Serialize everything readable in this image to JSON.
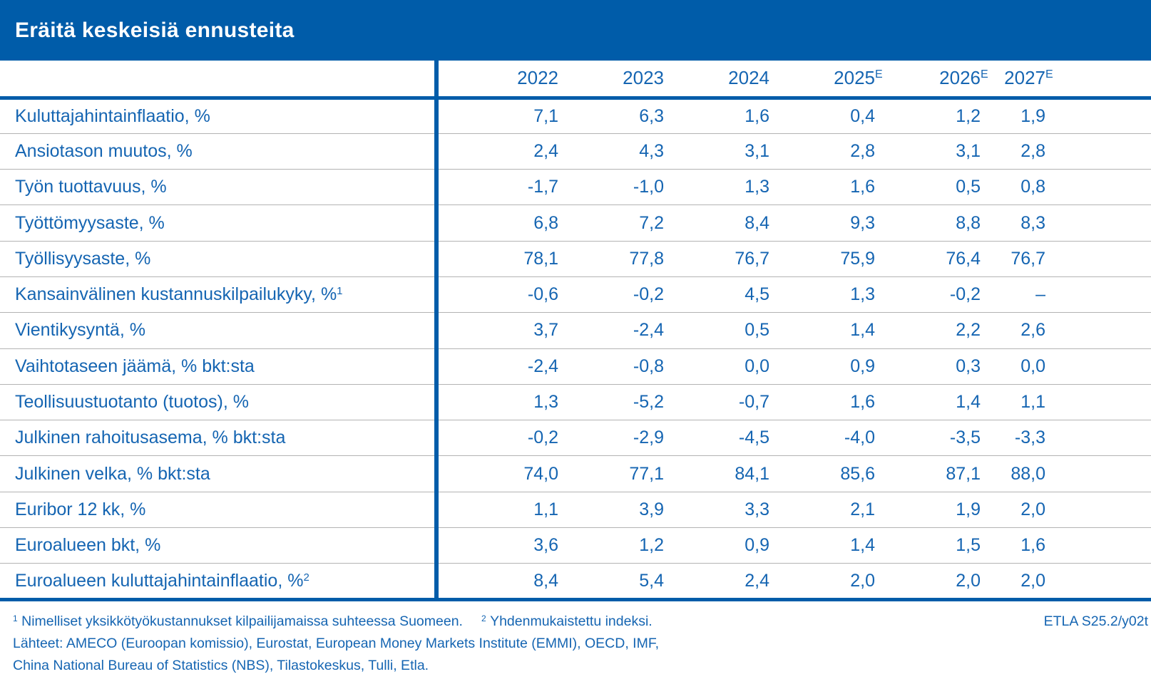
{
  "title": "Eräitä keskeisiä ennusteita",
  "colors": {
    "brand_blue": "#005CA9",
    "text_blue": "#1565B2",
    "separator_gray": "#B3B3B3",
    "title_text": "#FFFFFF"
  },
  "table": {
    "columns": [
      {
        "label": "2022",
        "sup": ""
      },
      {
        "label": "2023",
        "sup": ""
      },
      {
        "label": "2024",
        "sup": ""
      },
      {
        "label": "2025",
        "sup": "E"
      },
      {
        "label": "2026",
        "sup": "E"
      },
      {
        "label": "2027",
        "sup": "E"
      }
    ],
    "rows": [
      {
        "label": "Kuluttajahintainflaatio, %",
        "sup": "",
        "values": [
          "7,1",
          "6,3",
          "1,6",
          "0,4",
          "1,2",
          "1,9"
        ]
      },
      {
        "label": "Ansiotason muutos, %",
        "sup": "",
        "values": [
          "2,4",
          "4,3",
          "3,1",
          "2,8",
          "3,1",
          "2,8"
        ]
      },
      {
        "label": "Työn tuottavuus, %",
        "sup": "",
        "values": [
          "-1,7",
          "-1,0",
          "1,3",
          "1,6",
          "0,5",
          "0,8"
        ]
      },
      {
        "label": "Työttömyysaste, %",
        "sup": "",
        "values": [
          "6,8",
          "7,2",
          "8,4",
          "9,3",
          "8,8",
          "8,3"
        ]
      },
      {
        "label": "Työllisyysaste, %",
        "sup": "",
        "values": [
          "78,1",
          "77,8",
          "76,7",
          "75,9",
          "76,4",
          "76,7"
        ]
      },
      {
        "label": "Kansainvälinen kustannuskilpailukyky, %",
        "sup": "1",
        "values": [
          "-0,6",
          "-0,2",
          "4,5",
          "1,3",
          "-0,2",
          "–"
        ]
      },
      {
        "label": "Vientikysyntä, %",
        "sup": "",
        "values": [
          "3,7",
          "-2,4",
          "0,5",
          "1,4",
          "2,2",
          "2,6"
        ]
      },
      {
        "label": "Vaihtotaseen jäämä, % bkt:sta",
        "sup": "",
        "values": [
          "-2,4",
          "-0,8",
          "0,0",
          "0,9",
          "0,3",
          "0,0"
        ]
      },
      {
        "label": "Teollisuustuotanto (tuotos), %",
        "sup": "",
        "values": [
          "1,3",
          "-5,2",
          "-0,7",
          "1,6",
          "1,4",
          "1,1"
        ]
      },
      {
        "label": "Julkinen rahoitusasema, % bkt:sta",
        "sup": "",
        "values": [
          "-0,2",
          "-2,9",
          "-4,5",
          "-4,0",
          "-3,5",
          "-3,3"
        ]
      },
      {
        "label": "Julkinen velka, % bkt:sta",
        "sup": "",
        "values": [
          "74,0",
          "77,1",
          "84,1",
          "85,6",
          "87,1",
          "88,0"
        ]
      },
      {
        "label": "Euribor 12 kk, %",
        "sup": "",
        "values": [
          "1,1",
          "3,9",
          "3,3",
          "2,1",
          "1,9",
          "2,0"
        ]
      },
      {
        "label": "Euroalueen bkt, %",
        "sup": "",
        "values": [
          "3,6",
          "1,2",
          "0,9",
          "1,4",
          "1,5",
          "1,6"
        ]
      },
      {
        "label": "Euroalueen kuluttajahintainflaatio, %",
        "sup": "2",
        "values": [
          "8,4",
          "5,4",
          "2,4",
          "2,0",
          "2,0",
          "2,0"
        ]
      }
    ]
  },
  "footnotes": {
    "notes": [
      {
        "sup": "1",
        "text": "Nimelliset yksikkötyökustannukset kilpailijamaissa suhteessa Suomeen."
      },
      {
        "sup": "2",
        "text": "Yhdenmukaistettu indeksi."
      }
    ],
    "sources_line1": "Lähteet: AMECO (Euroopan komissio), Eurostat, European Money Markets Institute (EMMI), OECD, IMF,",
    "sources_line2": "China National Bureau of Statistics (NBS), Tilastokeskus, Tulli, Etla.",
    "code": "ETLA S25.2/y02t"
  },
  "chart_data": {
    "type": "table",
    "title": "Eräitä keskeisiä ennusteita",
    "categories": [
      "2022",
      "2023",
      "2024",
      "2025E",
      "2026E",
      "2027E"
    ],
    "series": [
      {
        "name": "Kuluttajahintainflaatio, %",
        "values": [
          7.1,
          6.3,
          1.6,
          0.4,
          1.2,
          1.9
        ]
      },
      {
        "name": "Ansiotason muutos, %",
        "values": [
          2.4,
          4.3,
          3.1,
          2.8,
          3.1,
          2.8
        ]
      },
      {
        "name": "Työn tuottavuus, %",
        "values": [
          -1.7,
          -1.0,
          1.3,
          1.6,
          0.5,
          0.8
        ]
      },
      {
        "name": "Työttömyysaste, %",
        "values": [
          6.8,
          7.2,
          8.4,
          9.3,
          8.8,
          8.3
        ]
      },
      {
        "name": "Työllisyysaste, %",
        "values": [
          78.1,
          77.8,
          76.7,
          75.9,
          76.4,
          76.7
        ]
      },
      {
        "name": "Kansainvälinen kustannuskilpailukyky, %1",
        "values": [
          -0.6,
          -0.2,
          4.5,
          1.3,
          -0.2,
          null
        ]
      },
      {
        "name": "Vientikysyntä, %",
        "values": [
          3.7,
          -2.4,
          0.5,
          1.4,
          2.2,
          2.6
        ]
      },
      {
        "name": "Vaihtotaseen jäämä, % bkt:sta",
        "values": [
          -2.4,
          -0.8,
          0.0,
          0.9,
          0.3,
          0.0
        ]
      },
      {
        "name": "Teollisuustuotanto (tuotos), %",
        "values": [
          1.3,
          -5.2,
          -0.7,
          1.6,
          1.4,
          1.1
        ]
      },
      {
        "name": "Julkinen rahoitusasema, % bkt:sta",
        "values": [
          -0.2,
          -2.9,
          -4.5,
          -4.0,
          -3.5,
          -3.3
        ]
      },
      {
        "name": "Julkinen velka, % bkt:sta",
        "values": [
          74.0,
          77.1,
          84.1,
          85.6,
          87.1,
          88.0
        ]
      },
      {
        "name": "Euribor 12 kk, %",
        "values": [
          1.1,
          3.9,
          3.3,
          2.1,
          1.9,
          2.0
        ]
      },
      {
        "name": "Euroalueen bkt, %",
        "values": [
          3.6,
          1.2,
          0.9,
          1.4,
          1.5,
          1.6
        ]
      },
      {
        "name": "Euroalueen kuluttajahintainflaatio, %2",
        "values": [
          8.4,
          5.4,
          2.4,
          2.0,
          2.0,
          2.0
        ]
      }
    ]
  }
}
